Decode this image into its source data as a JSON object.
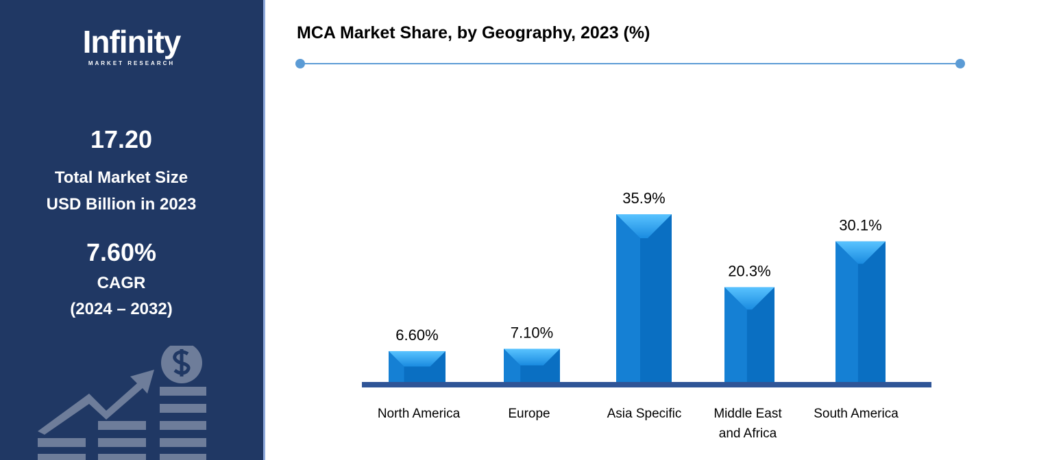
{
  "logo": {
    "name": "Infinity",
    "tagline": "MARKET RESEARCH"
  },
  "sidebar": {
    "market_size": "17.20",
    "market_size_label_1": "Total Market Size",
    "market_size_label_2": "USD Billion in 2023",
    "cagr": "7.60%",
    "cagr_label": "CAGR",
    "cagr_period": "(2024 – 2032)",
    "icon": "growth-chart-dollar-icon"
  },
  "colors": {
    "sidebar": "#203864",
    "bar": "#0a6fc2",
    "bar_highlight": "#3fb0f5",
    "axis": "#2f5597",
    "rule": "#5b9bd5"
  },
  "chart_data": {
    "type": "bar",
    "title": "MCA Market Share, by Geography, 2023 (%)",
    "categories": [
      "North America",
      "Europe",
      "Asia Specific",
      "Middle East and Africa",
      "South America"
    ],
    "category_lines": [
      [
        "North America"
      ],
      [
        "Europe"
      ],
      [
        "Asia Specific"
      ],
      [
        "Middle East",
        "and Africa"
      ],
      [
        "South America"
      ]
    ],
    "values": [
      6.6,
      7.1,
      35.9,
      20.3,
      30.1
    ],
    "data_labels": [
      "6.60%",
      "7.10%",
      "35.9%",
      "20.3%",
      "30.1%"
    ],
    "xlabel": "",
    "ylabel": "",
    "grid": false,
    "legend": "none"
  }
}
